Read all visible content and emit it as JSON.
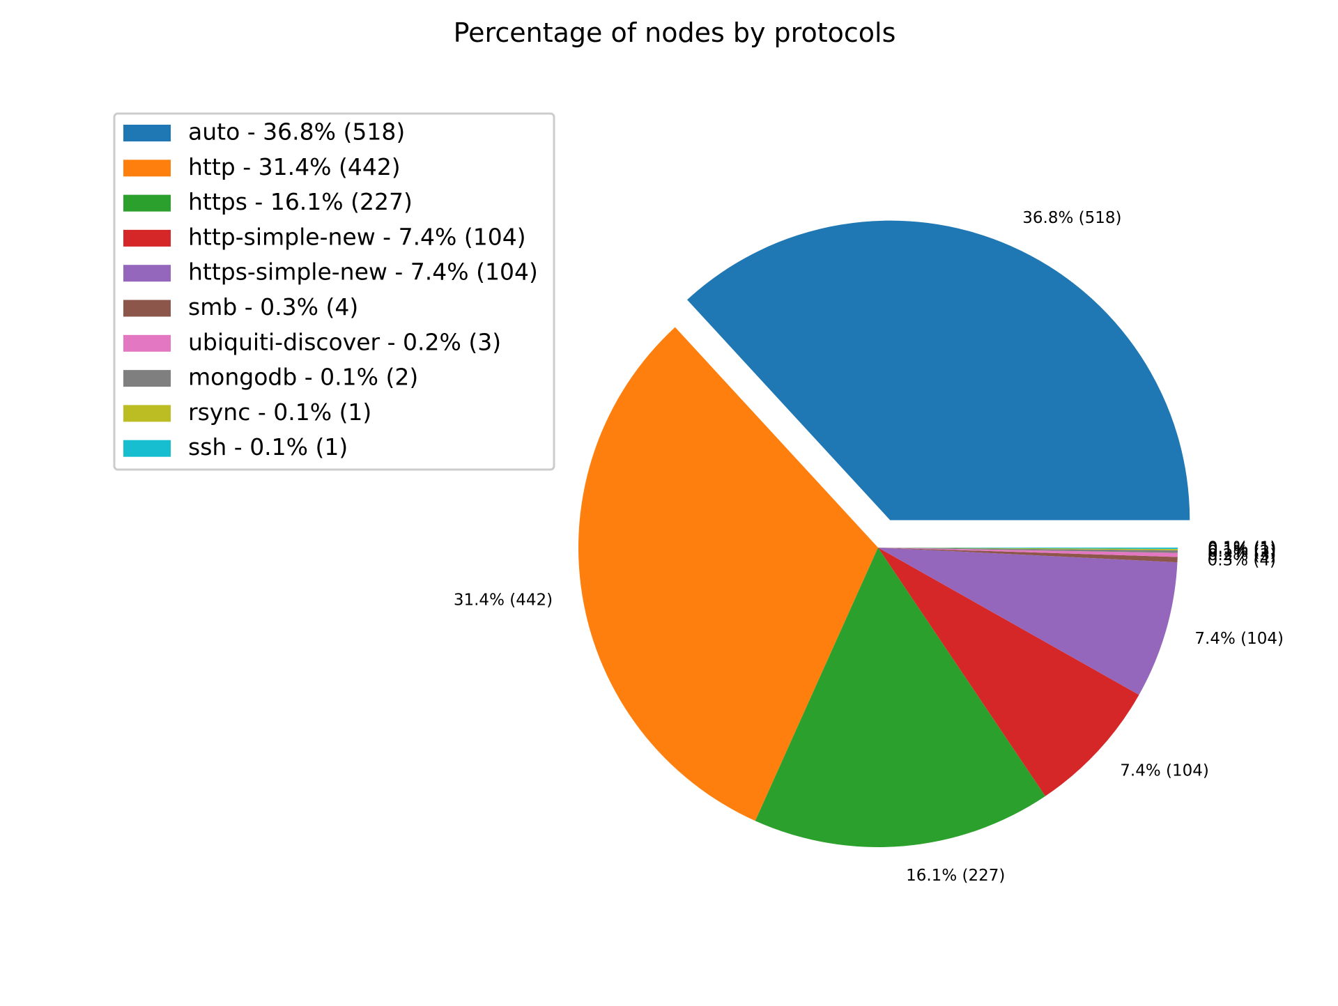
{
  "chart_data": {
    "type": "pie",
    "title": "Percentage of nodes by protocols",
    "legend_location": "upper-left",
    "start_angle_deg": 0,
    "direction": "counterclockwise",
    "exploded": [
      "auto"
    ],
    "slices": [
      {
        "name": "auto",
        "value": 518,
        "percent": 36.8,
        "color": "#1f77b4",
        "legend_label": "auto - 36.8% (518)",
        "autopct": "36.8% (518)"
      },
      {
        "name": "http",
        "value": 442,
        "percent": 31.4,
        "color": "#ff7f0e",
        "legend_label": "http - 31.4% (442)",
        "autopct": "31.4% (442)"
      },
      {
        "name": "https",
        "value": 227,
        "percent": 16.1,
        "color": "#2ca02c",
        "legend_label": "https - 16.1% (227)",
        "autopct": "16.1% (227)"
      },
      {
        "name": "http-simple-new",
        "value": 104,
        "percent": 7.4,
        "color": "#d62728",
        "legend_label": "http-simple-new - 7.4% (104)",
        "autopct": "7.4% (104)"
      },
      {
        "name": "https-simple-new",
        "value": 104,
        "percent": 7.4,
        "color": "#9467bd",
        "legend_label": "https-simple-new - 7.4% (104)",
        "autopct": "7.4% (104)"
      },
      {
        "name": "smb",
        "value": 4,
        "percent": 0.3,
        "color": "#8c564b",
        "legend_label": "smb - 0.3% (4)",
        "autopct": "0.3% (4)"
      },
      {
        "name": "ubiquiti-discover",
        "value": 3,
        "percent": 0.2,
        "color": "#e377c2",
        "legend_label": "ubiquiti-discover - 0.2% (3)",
        "autopct": "0.2% (3)"
      },
      {
        "name": "mongodb",
        "value": 2,
        "percent": 0.1,
        "color": "#7f7f7f",
        "legend_label": "mongodb - 0.1% (2)",
        "autopct": "0.1% (2)"
      },
      {
        "name": "rsync",
        "value": 1,
        "percent": 0.1,
        "color": "#bcbd22",
        "legend_label": "rsync - 0.1% (1)",
        "autopct": "0.1% (1)"
      },
      {
        "name": "ssh",
        "value": 1,
        "percent": 0.1,
        "color": "#17becf",
        "legend_label": "ssh - 0.1% (1)",
        "autopct": "0.1% (1)"
      }
    ]
  }
}
